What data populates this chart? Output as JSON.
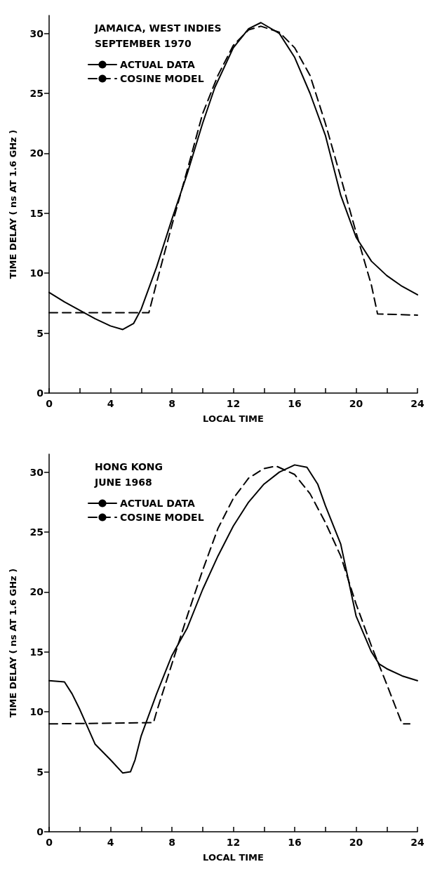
{
  "chart_data": [
    {
      "type": "line",
      "title": "JAMAICA, WEST INDIES",
      "subtitle": "SEPTEMBER 1970",
      "xlabel": "LOCAL TIME",
      "ylabel": "TIME DELAY ( ns AT 1.6 GHz )",
      "xlim": [
        0,
        24
      ],
      "ylim": [
        0,
        31.5
      ],
      "xticks": [
        0,
        {
          "value": 2,
          "label": null
        },
        4,
        {
          "value": 6,
          "label": null
        },
        8,
        {
          "value": 10,
          "label": null
        },
        12,
        {
          "value": 14,
          "label": null
        },
        16,
        {
          "value": 18,
          "label": null
        },
        20,
        {
          "value": 22,
          "label": null
        },
        24
      ],
      "yticks": [
        0,
        5,
        10,
        15,
        20,
        25,
        30
      ],
      "grid": false,
      "legend": "top left",
      "marker": "none",
      "series": [
        {
          "name": "ACTUAL DATA",
          "color": "#000000",
          "line_style": "solid",
          "x": [
            0,
            1,
            2,
            3,
            4,
            4.8,
            5.5,
            6,
            7,
            8,
            9,
            10,
            10.8,
            12,
            13,
            13.8,
            15,
            16,
            17,
            18,
            19,
            20,
            21,
            22,
            23,
            24
          ],
          "values": [
            8.4,
            7.6,
            6.9,
            6.2,
            5.6,
            5.3,
            5.8,
            7,
            10.5,
            14.5,
            18.3,
            22.5,
            25.5,
            28.8,
            30.4,
            30.9,
            30,
            28,
            25,
            21.5,
            16.5,
            13,
            11,
            9.8,
            8.9,
            8.2
          ]
        },
        {
          "name": "COSINE MODEL",
          "color": "#000000",
          "line_style": "dashed",
          "x": [
            0,
            6.5,
            7,
            8,
            9,
            10,
            11,
            12,
            13,
            13.8,
            15,
            16,
            17,
            18,
            19,
            20,
            21,
            21.4,
            24
          ],
          "values": [
            6.7,
            6.7,
            9.2,
            14,
            18.6,
            23.3,
            26.5,
            29,
            30.3,
            30.6,
            30.1,
            28.8,
            26.5,
            22.5,
            18,
            13.4,
            9,
            6.6,
            6.5
          ]
        }
      ]
    },
    {
      "type": "line",
      "title": "HONG KONG",
      "subtitle": "JUNE 1968",
      "xlabel": "LOCAL TIME",
      "ylabel": "TIME DELAY ( ns AT 1.6 GHz )",
      "xlim": [
        0,
        24
      ],
      "ylim": [
        0,
        31.5
      ],
      "xticks": [
        0,
        {
          "value": 2,
          "label": null
        },
        4,
        {
          "value": 6,
          "label": null
        },
        8,
        {
          "value": 10,
          "label": null
        },
        12,
        {
          "value": 14,
          "label": null
        },
        16,
        {
          "value": 18,
          "label": null
        },
        20,
        {
          "value": 22,
          "label": null
        },
        24
      ],
      "yticks": [
        0,
        5,
        10,
        15,
        20,
        25,
        30
      ],
      "grid": false,
      "legend": "top left",
      "marker": "none",
      "series": [
        {
          "name": "ACTUAL DATA",
          "color": "#000000",
          "line_style": "solid",
          "x": [
            0,
            1,
            1.5,
            2,
            3,
            4,
            4.8,
            5.3,
            5.6,
            6,
            7,
            8,
            9,
            10,
            11,
            12,
            13,
            14,
            15,
            16,
            16.8,
            17.5,
            18,
            19,
            19.5,
            20,
            21,
            21.5,
            22,
            23,
            24
          ],
          "values": [
            12.6,
            12.5,
            11.5,
            10.2,
            7.3,
            6,
            4.9,
            5,
            6,
            8,
            11.5,
            14.7,
            17,
            20.2,
            23,
            25.5,
            27.5,
            29,
            30,
            30.6,
            30.4,
            29,
            27.2,
            24,
            21,
            18,
            15,
            14,
            13.6,
            13,
            12.6
          ]
        },
        {
          "name": "COSINE MODEL",
          "color": "#000000",
          "line_style": "dashed",
          "x": [
            0,
            6.8,
            7,
            8,
            9,
            10,
            11,
            12,
            13,
            14,
            14.8,
            16,
            17,
            18,
            19,
            20,
            21,
            22,
            23,
            23.5
          ],
          "values": [
            9,
            9.1,
            10,
            14,
            18,
            21.8,
            25.3,
            27.8,
            29.5,
            30.3,
            30.5,
            29.8,
            28.2,
            25.8,
            23,
            19,
            15.5,
            12.3,
            9,
            9
          ]
        }
      ]
    }
  ]
}
